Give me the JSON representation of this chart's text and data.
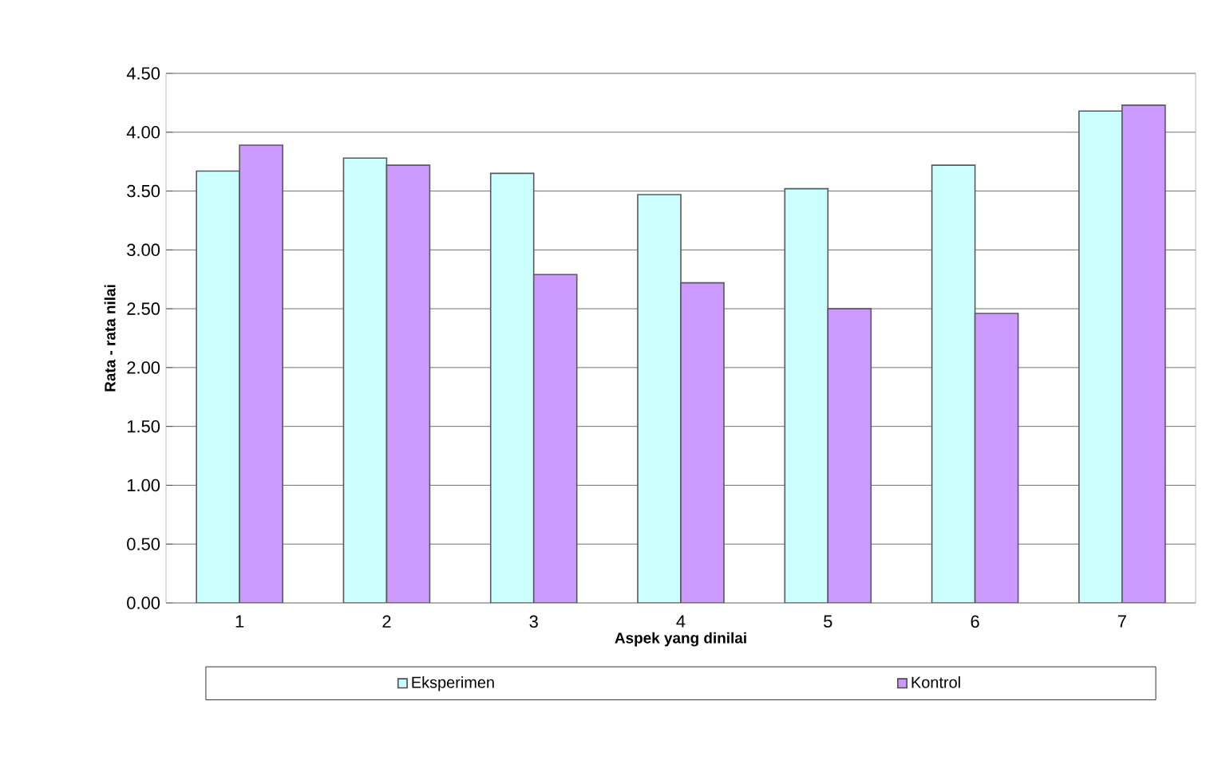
{
  "chart_data": {
    "type": "bar",
    "xlabel": "Aspek yang dinilai",
    "ylabel": "Rata - rata nilai",
    "categories": [
      "1",
      "2",
      "3",
      "4",
      "5",
      "6",
      "7"
    ],
    "series": [
      {
        "name": "Eksperimen",
        "color": "#ccffff",
        "values": [
          3.67,
          3.78,
          3.65,
          3.47,
          3.52,
          3.72,
          4.18
        ]
      },
      {
        "name": "Kontrol",
        "color": "#cc99ff",
        "values": [
          3.89,
          3.72,
          2.79,
          2.72,
          2.5,
          2.46,
          4.23
        ]
      }
    ],
    "ylim": [
      0,
      4.5
    ],
    "yticks": [
      {
        "value": 0,
        "label": "0.00"
      },
      {
        "value": 0.5,
        "label": "0.50"
      },
      {
        "value": 1,
        "label": "1.00"
      },
      {
        "value": 1.5,
        "label": "1.50"
      },
      {
        "value": 2,
        "label": "2.00"
      },
      {
        "value": 2.5,
        "label": "2.50"
      },
      {
        "value": 3,
        "label": "3.00"
      },
      {
        "value": 3.5,
        "label": "3.50"
      },
      {
        "value": 4,
        "label": "4.00"
      },
      {
        "value": 4.5,
        "label": "4.50"
      }
    ],
    "grid": "y",
    "legend": "bottom"
  }
}
